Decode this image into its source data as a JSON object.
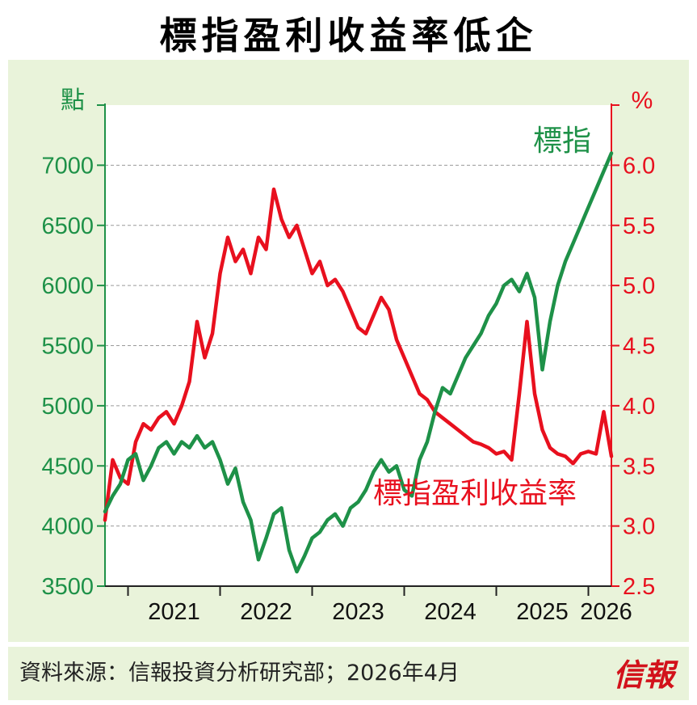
{
  "header": {
    "title": "標指盈利收益率低企"
  },
  "footer": {
    "source": "資料來源：信報投資分析研究部；2026年4月",
    "brand": "信報"
  },
  "colors": {
    "index": "#1e9148",
    "yield": "#e8101e",
    "background": "#e9f3da",
    "grid": "#9a9a9a"
  },
  "chart_data": {
    "type": "line",
    "title": "標指盈利收益率低企",
    "x_ticks": [
      "2021",
      "2022",
      "2023",
      "2024",
      "2025",
      "2026"
    ],
    "xlim": [
      "2020-10",
      "2026-04"
    ],
    "left_axis": {
      "unit": "點",
      "ticks": [
        "3500",
        "4000",
        "4500",
        "5000",
        "5500",
        "6000",
        "6500",
        "7000"
      ],
      "ylim": [
        3500,
        7500
      ]
    },
    "right_axis": {
      "unit": "%",
      "ticks": [
        "2.5",
        "3.0",
        "3.5",
        "4.0",
        "4.5",
        "5.0",
        "5.5",
        "6.0"
      ],
      "ylim": [
        2.5,
        6.5
      ]
    },
    "grid": true,
    "series": [
      {
        "name": "標指",
        "axis": "left",
        "points": [
          [
            "2020-10",
            4120
          ],
          [
            "2020-11",
            4250
          ],
          [
            "2020-12",
            4350
          ],
          [
            "2021-01",
            4550
          ],
          [
            "2021-02",
            4600
          ],
          [
            "2021-03",
            4380
          ],
          [
            "2021-04",
            4500
          ],
          [
            "2021-05",
            4650
          ],
          [
            "2021-06",
            4700
          ],
          [
            "2021-07",
            4600
          ],
          [
            "2021-08",
            4700
          ],
          [
            "2021-09",
            4650
          ],
          [
            "2021-10",
            4750
          ],
          [
            "2021-11",
            4650
          ],
          [
            "2021-12",
            4700
          ],
          [
            "2022-01",
            4550
          ],
          [
            "2022-02",
            4350
          ],
          [
            "2022-03",
            4480
          ],
          [
            "2022-04",
            4200
          ],
          [
            "2022-05",
            4050
          ],
          [
            "2022-06",
            3720
          ],
          [
            "2022-07",
            3900
          ],
          [
            "2022-08",
            4100
          ],
          [
            "2022-09",
            4150
          ],
          [
            "2022-10",
            3800
          ],
          [
            "2022-11",
            3620
          ],
          [
            "2022-12",
            3750
          ],
          [
            "2023-01",
            3900
          ],
          [
            "2023-02",
            3950
          ],
          [
            "2023-03",
            4050
          ],
          [
            "2023-04",
            4100
          ],
          [
            "2023-05",
            4000
          ],
          [
            "2023-06",
            4150
          ],
          [
            "2023-07",
            4200
          ],
          [
            "2023-08",
            4300
          ],
          [
            "2023-09",
            4450
          ],
          [
            "2023-10",
            4550
          ],
          [
            "2023-11",
            4450
          ],
          [
            "2023-12",
            4500
          ],
          [
            "2024-01",
            4300
          ],
          [
            "2024-02",
            4250
          ],
          [
            "2024-03",
            4550
          ],
          [
            "2024-04",
            4700
          ],
          [
            "2024-05",
            4950
          ],
          [
            "2024-06",
            5150
          ],
          [
            "2024-07",
            5100
          ],
          [
            "2024-08",
            5250
          ],
          [
            "2024-09",
            5400
          ],
          [
            "2024-10",
            5500
          ],
          [
            "2024-11",
            5600
          ],
          [
            "2024-12",
            5750
          ],
          [
            "2025-01",
            5850
          ],
          [
            "2025-02",
            6000
          ],
          [
            "2025-03",
            6050
          ],
          [
            "2025-04",
            5950
          ],
          [
            "2025-05",
            6100
          ],
          [
            "2025-06",
            5900
          ],
          [
            "2025-07",
            5300
          ],
          [
            "2025-08",
            5700
          ],
          [
            "2025-09",
            6000
          ],
          [
            "2025-10",
            6200
          ],
          [
            "2025-11",
            6350
          ],
          [
            "2025-12",
            6500
          ],
          [
            "2026-01",
            6650
          ],
          [
            "2026-02",
            6800
          ],
          [
            "2026-03",
            6950
          ],
          [
            "2026-04",
            7100
          ]
        ]
      },
      {
        "name": "標指盈利收益率",
        "axis": "right",
        "points": [
          [
            "2020-10",
            3.05
          ],
          [
            "2020-11",
            3.55
          ],
          [
            "2020-12",
            3.4
          ],
          [
            "2021-01",
            3.35
          ],
          [
            "2021-02",
            3.7
          ],
          [
            "2021-03",
            3.85
          ],
          [
            "2021-04",
            3.8
          ],
          [
            "2021-05",
            3.9
          ],
          [
            "2021-06",
            3.95
          ],
          [
            "2021-07",
            3.85
          ],
          [
            "2021-08",
            4.0
          ],
          [
            "2021-09",
            4.2
          ],
          [
            "2021-10",
            4.7
          ],
          [
            "2021-11",
            4.4
          ],
          [
            "2021-12",
            4.6
          ],
          [
            "2022-01",
            5.1
          ],
          [
            "2022-02",
            5.4
          ],
          [
            "2022-03",
            5.2
          ],
          [
            "2022-04",
            5.3
          ],
          [
            "2022-05",
            5.1
          ],
          [
            "2022-06",
            5.4
          ],
          [
            "2022-07",
            5.3
          ],
          [
            "2022-08",
            5.8
          ],
          [
            "2022-09",
            5.55
          ],
          [
            "2022-10",
            5.4
          ],
          [
            "2022-11",
            5.5
          ],
          [
            "2022-12",
            5.3
          ],
          [
            "2023-01",
            5.1
          ],
          [
            "2023-02",
            5.2
          ],
          [
            "2023-03",
            5.0
          ],
          [
            "2023-04",
            5.05
          ],
          [
            "2023-05",
            4.95
          ],
          [
            "2023-06",
            4.8
          ],
          [
            "2023-07",
            4.65
          ],
          [
            "2023-08",
            4.6
          ],
          [
            "2023-09",
            4.75
          ],
          [
            "2023-10",
            4.9
          ],
          [
            "2023-11",
            4.8
          ],
          [
            "2023-12",
            4.55
          ],
          [
            "2024-01",
            4.4
          ],
          [
            "2024-02",
            4.25
          ],
          [
            "2024-03",
            4.1
          ],
          [
            "2024-04",
            4.05
          ],
          [
            "2024-05",
            3.95
          ],
          [
            "2024-06",
            3.9
          ],
          [
            "2024-07",
            3.85
          ],
          [
            "2024-08",
            3.8
          ],
          [
            "2024-09",
            3.75
          ],
          [
            "2024-10",
            3.7
          ],
          [
            "2024-11",
            3.68
          ],
          [
            "2024-12",
            3.65
          ],
          [
            "2025-01",
            3.6
          ],
          [
            "2025-02",
            3.62
          ],
          [
            "2025-03",
            3.55
          ],
          [
            "2025-04",
            4.1
          ],
          [
            "2025-05",
            4.7
          ],
          [
            "2025-06",
            4.1
          ],
          [
            "2025-07",
            3.8
          ],
          [
            "2025-08",
            3.65
          ],
          [
            "2025-09",
            3.6
          ],
          [
            "2025-10",
            3.58
          ],
          [
            "2025-11",
            3.52
          ],
          [
            "2025-12",
            3.6
          ],
          [
            "2026-01",
            3.62
          ],
          [
            "2026-02",
            3.6
          ],
          [
            "2026-03",
            3.95
          ],
          [
            "2026-04",
            3.58
          ]
        ]
      }
    ]
  }
}
